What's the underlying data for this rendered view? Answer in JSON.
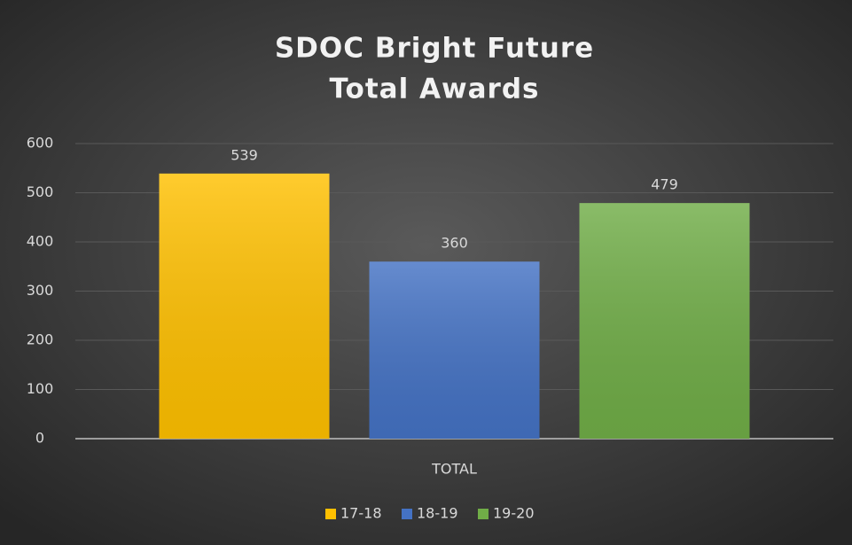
{
  "chart_data": {
    "type": "bar",
    "title": [
      "SDOC Bright Future",
      "Total Awards"
    ],
    "categories": [
      "TOTAL"
    ],
    "series": [
      {
        "name": "17-18",
        "color": "#ffc000",
        "values": [
          539
        ]
      },
      {
        "name": "18-19",
        "color": "#4472c4",
        "values": [
          360
        ]
      },
      {
        "name": "19-20",
        "color": "#70ad47",
        "values": [
          479
        ]
      }
    ],
    "ylim": [
      0,
      600
    ],
    "yticks": [
      0,
      100,
      200,
      300,
      400,
      500,
      600
    ],
    "grid": true,
    "legend": "bottom"
  }
}
